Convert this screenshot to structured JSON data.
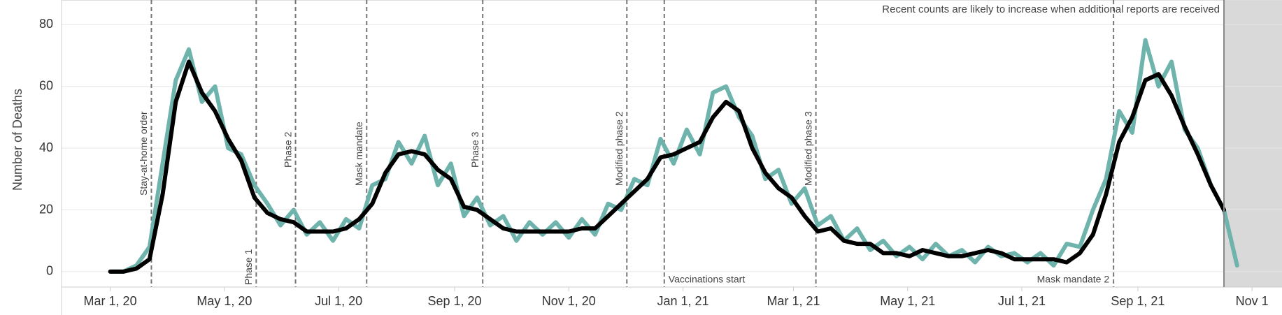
{
  "chart_data": {
    "type": "line",
    "y_label": "Number of Deaths",
    "annotation": "Recent counts are likely to increase when additional reports are received",
    "incomplete_from": "2021-10-17",
    "xlim": [
      "2020-02-04",
      "2021-11-17"
    ],
    "xticks": [
      {
        "value": "2020-03-01",
        "label": "Mar 1, 20"
      },
      {
        "value": "2020-05-01",
        "label": "May 1, 20"
      },
      {
        "value": "2020-07-01",
        "label": "Jul 1, 20"
      },
      {
        "value": "2020-09-01",
        "label": "Sep 1, 20"
      },
      {
        "value": "2020-11-01",
        "label": "Nov 1, 20"
      },
      {
        "value": "2021-01-01",
        "label": "Jan 1, 21"
      },
      {
        "value": "2021-03-01",
        "label": "Mar 1, 21"
      },
      {
        "value": "2021-05-01",
        "label": "May 1, 21"
      },
      {
        "value": "2021-07-01",
        "label": "Jul 1, 21"
      },
      {
        "value": "2021-09-01",
        "label": "Sep 1, 21"
      },
      {
        "value": "2021-11-01",
        "label": "Nov 1"
      }
    ],
    "ylim": [
      -5,
      88
    ],
    "yticks": [
      0,
      20,
      40,
      60,
      80
    ],
    "grid": true,
    "events": [
      {
        "x": "2020-03-23",
        "label": "Stay-at-home order"
      },
      {
        "x": "2020-05-18",
        "label": "Phase 1"
      },
      {
        "x": "2020-06-08",
        "label": "Phase 2"
      },
      {
        "x": "2020-07-16",
        "label": "Mask mandate"
      },
      {
        "x": "2020-09-16",
        "label": "Phase 3"
      },
      {
        "x": "2020-12-02",
        "label": "Modified phase 2"
      },
      {
        "x": "2020-12-22",
        "label": "Vaccinations start"
      },
      {
        "x": "2021-03-13",
        "label": "Modified phase 3"
      },
      {
        "x": "2021-08-19",
        "label": "Mask mandate 2"
      }
    ],
    "x": [
      "2020-03-01",
      "2020-03-08",
      "2020-03-15",
      "2020-03-22",
      "2020-03-29",
      "2020-04-05",
      "2020-04-12",
      "2020-04-19",
      "2020-04-26",
      "2020-05-03",
      "2020-05-10",
      "2020-05-17",
      "2020-05-24",
      "2020-05-31",
      "2020-06-07",
      "2020-06-14",
      "2020-06-21",
      "2020-06-28",
      "2020-07-05",
      "2020-07-12",
      "2020-07-19",
      "2020-07-26",
      "2020-08-02",
      "2020-08-09",
      "2020-08-16",
      "2020-08-23",
      "2020-08-30",
      "2020-09-06",
      "2020-09-13",
      "2020-09-20",
      "2020-09-27",
      "2020-10-04",
      "2020-10-11",
      "2020-10-18",
      "2020-10-25",
      "2020-11-01",
      "2020-11-08",
      "2020-11-15",
      "2020-11-22",
      "2020-11-29",
      "2020-12-06",
      "2020-12-13",
      "2020-12-20",
      "2020-12-27",
      "2021-01-03",
      "2021-01-10",
      "2021-01-17",
      "2021-01-24",
      "2021-01-31",
      "2021-02-07",
      "2021-02-14",
      "2021-02-21",
      "2021-02-28",
      "2021-03-07",
      "2021-03-14",
      "2021-03-21",
      "2021-03-28",
      "2021-04-04",
      "2021-04-11",
      "2021-04-18",
      "2021-04-25",
      "2021-05-02",
      "2021-05-09",
      "2021-05-16",
      "2021-05-23",
      "2021-05-30",
      "2021-06-06",
      "2021-06-13",
      "2021-06-20",
      "2021-06-27",
      "2021-07-04",
      "2021-07-11",
      "2021-07-18",
      "2021-07-25",
      "2021-08-01",
      "2021-08-08",
      "2021-08-15",
      "2021-08-22",
      "2021-08-29",
      "2021-09-05",
      "2021-09-12",
      "2021-09-19",
      "2021-09-26",
      "2021-10-03",
      "2021-10-10",
      "2021-10-17",
      "2021-10-24"
    ],
    "series": [
      {
        "color": "#6fb3ad",
        "width": 6,
        "values": [
          0,
          0,
          2,
          8,
          35,
          62,
          72,
          55,
          60,
          40,
          38,
          28,
          22,
          15,
          20,
          12,
          16,
          10,
          17,
          14,
          28,
          30,
          42,
          35,
          44,
          28,
          35,
          18,
          24,
          15,
          18,
          10,
          16,
          12,
          16,
          11,
          17,
          12,
          22,
          20,
          30,
          28,
          43,
          35,
          46,
          38,
          58,
          60,
          50,
          44,
          30,
          33,
          22,
          27,
          15,
          18,
          10,
          14,
          7,
          10,
          5,
          8,
          4,
          9,
          5,
          7,
          3,
          8,
          5,
          6,
          3,
          6,
          2,
          9,
          8,
          20,
          30,
          52,
          45,
          75,
          60,
          68,
          46,
          40,
          28,
          20,
          2
        ]
      },
      {
        "color": "#000000",
        "width": 6,
        "values": [
          0,
          0,
          1,
          4,
          25,
          55,
          68,
          58,
          52,
          43,
          36,
          24,
          19,
          17,
          16,
          13,
          13,
          13,
          14,
          17,
          22,
          32,
          38,
          39,
          38,
          33,
          30,
          21,
          20,
          17,
          14,
          13,
          13,
          13,
          13,
          13,
          14,
          14,
          18,
          22,
          26,
          30,
          37,
          38,
          40,
          42,
          50,
          55,
          52,
          40,
          32,
          27,
          24,
          18,
          13,
          14,
          10,
          9,
          9,
          6,
          6,
          5,
          7,
          6,
          5,
          5,
          6,
          7,
          6,
          4,
          4,
          4,
          4,
          3,
          6,
          12,
          25,
          42,
          50,
          62,
          64,
          57,
          47,
          38,
          28,
          20,
          null
        ]
      }
    ]
  }
}
